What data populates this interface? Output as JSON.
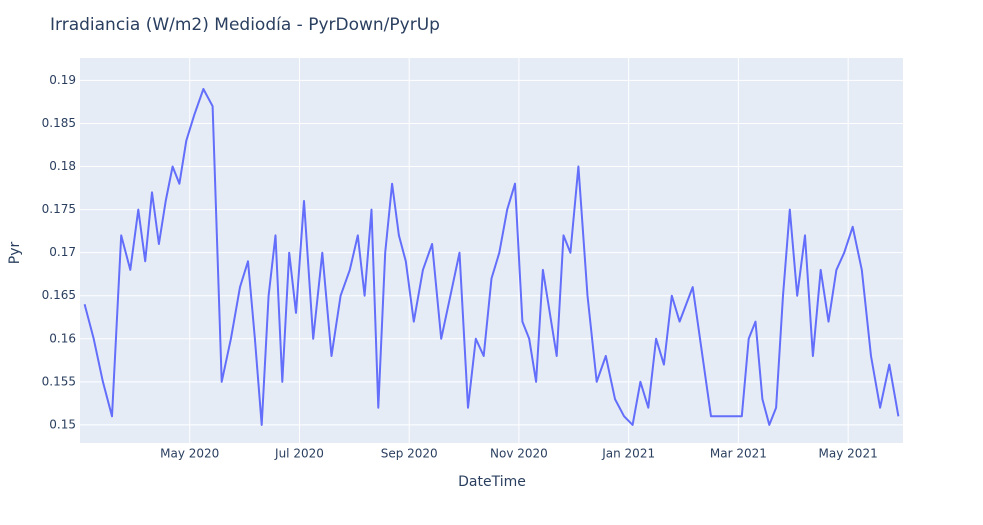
{
  "chart_data": {
    "type": "line",
    "title": "Irradiancia (W/m2) Mediodía - PyrDown/PyrUp",
    "x_label": "DateTime",
    "y_label": "Pyr",
    "x": [
      "2020-03",
      "2020-03",
      "2020-03",
      "2020-03",
      "2020-03",
      "2020-03",
      "2020-04",
      "2020-04",
      "2020-04",
      "2020-04",
      "2020-04",
      "2020-04",
      "2020-04",
      "2020-04",
      "2020-05",
      "2020-05",
      "2020-05",
      "2020-05",
      "2020-05",
      "2020-05",
      "2020-06",
      "2020-06",
      "2020-06",
      "2020-06",
      "2020-06",
      "2020-06",
      "2020-06",
      "2020-06",
      "2020-07",
      "2020-07",
      "2020-07",
      "2020-07",
      "2020-07",
      "2020-07",
      "2020-08",
      "2020-08",
      "2020-08",
      "2020-08",
      "2020-08",
      "2020-08",
      "2020-08",
      "2020-08",
      "2020-09",
      "2020-09",
      "2020-09",
      "2020-09",
      "2020-09",
      "2020-09",
      "2020-10",
      "2020-10",
      "2020-10",
      "2020-10",
      "2020-10",
      "2020-10",
      "2020-10",
      "2020-11",
      "2020-11",
      "2020-11",
      "2020-11",
      "2020-11",
      "2020-11",
      "2020-11",
      "2020-11",
      "2020-12",
      "2020-12",
      "2020-12",
      "2020-12",
      "2020-12",
      "2020-12",
      "2021-01",
      "2021-01",
      "2021-01",
      "2021-01",
      "2021-01",
      "2021-01",
      "2021-01",
      "2021-02",
      "2021-02",
      "2021-02",
      "2021-03",
      "2021-03",
      "2021-03",
      "2021-03",
      "2021-03",
      "2021-03",
      "2021-03",
      "2021-03",
      "2021-04",
      "2021-04",
      "2021-04",
      "2021-04",
      "2021-04",
      "2021-04",
      "2021-04",
      "2021-05",
      "2021-05",
      "2021-05",
      "2021-05",
      "2021-05",
      "2021-05"
    ],
    "series": [
      {
        "name": "Pyr",
        "color": "#636efa",
        "values": [
          0.164,
          0.16,
          0.155,
          0.151,
          0.172,
          0.168,
          0.175,
          0.169,
          0.177,
          0.171,
          0.176,
          0.18,
          0.178,
          0.183,
          0.186,
          0.189,
          0.187,
          0.155,
          0.16,
          0.166,
          0.169,
          0.16,
          0.15,
          0.165,
          0.172,
          0.155,
          0.17,
          0.163,
          0.176,
          0.16,
          0.17,
          0.158,
          0.165,
          0.168,
          0.172,
          0.165,
          0.175,
          0.152,
          0.17,
          0.178,
          0.172,
          0.169,
          0.162,
          0.168,
          0.171,
          0.16,
          0.165,
          0.17,
          0.152,
          0.16,
          0.158,
          0.167,
          0.17,
          0.175,
          0.178,
          0.162,
          0.16,
          0.155,
          0.168,
          0.163,
          0.158,
          0.172,
          0.17,
          0.18,
          0.165,
          0.155,
          0.158,
          0.153,
          0.151,
          0.15,
          0.155,
          0.152,
          0.16,
          0.157,
          0.165,
          0.162,
          0.166,
          0.151,
          0.151,
          0.151,
          0.16,
          0.162,
          0.153,
          0.15,
          0.152,
          0.165,
          0.175,
          0.165,
          0.172,
          0.158,
          0.168,
          0.162,
          0.168,
          0.17,
          0.173,
          0.168,
          0.158,
          0.152,
          0.157,
          0.151
        ]
      }
    ],
    "xlim": [
      "2020-03",
      "2021-05"
    ],
    "xticks": [
      {
        "value": "2020-05",
        "label": "May 2020"
      },
      {
        "value": "2020-07",
        "label": "Jul 2020"
      },
      {
        "value": "2020-09",
        "label": "Sep 2020"
      },
      {
        "value": "2020-11",
        "label": "Nov 2020"
      },
      {
        "value": "2021-01",
        "label": "Jan 2021"
      },
      {
        "value": "2021-03",
        "label": "Mar 2021"
      },
      {
        "value": "2021-05",
        "label": "May 2021"
      }
    ],
    "ylim": [
      0.1479,
      0.1926
    ],
    "yticks": [
      0.15,
      0.155,
      0.16,
      0.165,
      0.17,
      0.175,
      0.18,
      0.185,
      0.19
    ],
    "grid": true
  }
}
